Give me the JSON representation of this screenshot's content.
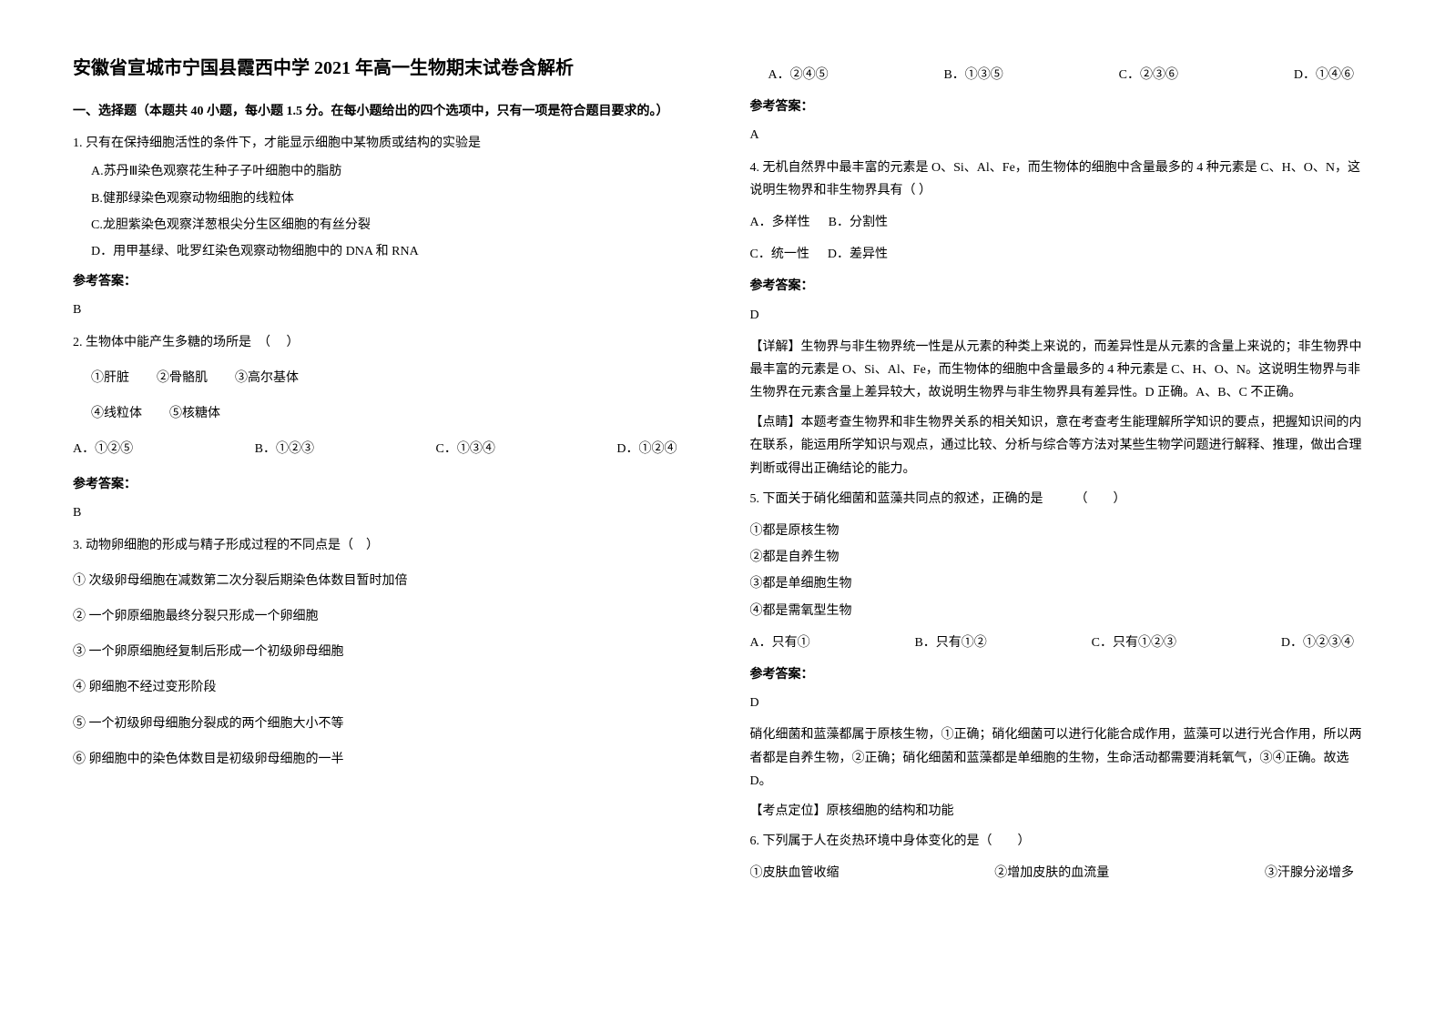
{
  "title": "安徽省宣城市宁国县霞西中学 2021 年高一生物期末试卷含解析",
  "section1_header": "一、选择题（本题共 40 小题，每小题 1.5 分。在每小题给出的四个选项中，只有一项是符合题目要求的。）",
  "q1": {
    "text": "1. 只有在保持细胞活性的条件下，才能显示细胞中某物质或结构的实验是",
    "optA": "A.苏丹Ⅲ染色观察花生种子子叶细胞中的脂肪",
    "optB": "B.健那绿染色观察动物细胞的线粒体",
    "optC": "C.龙胆紫染色观察洋葱根尖分生区细胞的有丝分裂",
    "optD": "D．用甲基绿、吡罗红染色观察动物细胞中的 DNA 和 RNA",
    "answer_label": "参考答案：",
    "answer": "B"
  },
  "q2": {
    "text": "2. 生物体中能产生多糖的场所是　（　  ）",
    "item1": "①肝脏",
    "item2": "②骨骼肌",
    "item3": "③高尔基体",
    "item4": "④线粒体",
    "item5": "⑤核糖体",
    "optA": "A．①②⑤",
    "optB": "B．①②③",
    "optC": "C．①③④",
    "optD": "D．①②④",
    "answer_label": "参考答案：",
    "answer": "B"
  },
  "q3": {
    "text": "3. 动物卵细胞的形成与精子形成过程的不同点是（　）",
    "item1": "① 次级卵母细胞在减数第二次分裂后期染色体数目暂时加倍",
    "item2": "② 一个卵原细胞最终分裂只形成一个卵细胞",
    "item3": "③ 一个卵原细胞经复制后形成一个初级卵母细胞",
    "item4": "④ 卵细胞不经过变形阶段",
    "item5": "⑤ 一个初级卵母细胞分裂成的两个细胞大小不等",
    "item6": "⑥ 卵细胞中的染色体数目是初级卵母细胞的一半",
    "optA": "A．②④⑤",
    "optB": "B．①③⑤",
    "optC": "C．②③⑥",
    "optD": "D．①④⑥",
    "answer_label": "参考答案：",
    "answer": "A"
  },
  "q4": {
    "text": "4. 无机自然界中最丰富的元素是 O、Si、Al、Fe，而生物体的细胞中含量最多的 4 种元素是 C、H、O、N，这说明生物界和非生物界具有（ ）",
    "optA": "A．多样性",
    "optB": "B．分割性",
    "optC": "C．统一性",
    "optD": "D．差异性",
    "answer_label": "参考答案：",
    "answer": "D",
    "explanation1": "【详解】生物界与非生物界统一性是从元素的种类上来说的，而差异性是从元素的含量上来说的；非生物界中最丰富的元素是 O、Si、Al、Fe，而生物体的细胞中含量最多的 4 种元素是 C、H、O、N。这说明生物界与非生物界在元素含量上差异较大，故说明生物界与非生物界具有差异性。D 正确。A、B、C 不正确。",
    "explanation2": "【点睛】本题考查生物界和非生物界关系的相关知识，意在考查考生能理解所学知识的要点，把握知识间的内在联系，能运用所学知识与观点，通过比较、分析与综合等方法对某些生物学问题进行解释、推理，做出合理判断或得出正确结论的能力。"
  },
  "q5": {
    "text": "5. 下面关于硝化细菌和蓝藻共同点的叙述，正确的是　　　（　　）",
    "item1": "①都是原核生物",
    "item2": "②都是自养生物",
    "item3": "③都是单细胞生物",
    "item4": "④都是需氧型生物",
    "optA": "A．只有①",
    "optB": "B．只有①②",
    "optC": "C．只有①②③",
    "optD": "D．①②③④",
    "answer_label": "参考答案：",
    "answer": "D",
    "explanation1": "硝化细菌和蓝藻都属于原核生物，①正确；硝化细菌可以进行化能合成作用，蓝藻可以进行光合作用，所以两者都是自养生物，②正确；硝化细菌和蓝藻都是单细胞的生物，生命活动都需要消耗氧气，③④正确。故选 D。",
    "explanation2": "【考点定位】原核细胞的结构和功能"
  },
  "q6": {
    "text": "6. 下列属于人在炎热环境中身体变化的是（　　）",
    "item1": "①皮肤血管收缩",
    "item2": "②增加皮肤的血流量",
    "item3": "③汗腺分泌增多"
  }
}
